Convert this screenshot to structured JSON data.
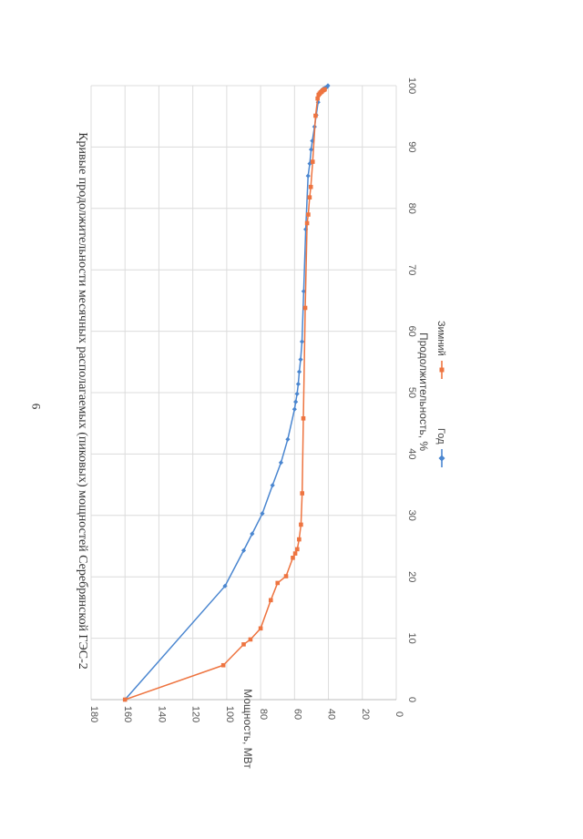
{
  "page": {
    "number": "6"
  },
  "colors": {
    "year": "#4a86d0",
    "winter": "#ee7440",
    "grid": "#dcdcdc",
    "axis": "#bdbdbd"
  },
  "chart_data": {
    "type": "line",
    "orientation": "rotated-90-clockwise",
    "title": "Кривые продолжительности месячных располагаемых (пиковых) мощностей Серебрянской ГЭС-2",
    "xlabel": "Продолжительность, %",
    "ylabel": "Мощность, МВт",
    "xlim": [
      0,
      100
    ],
    "ylim": [
      0,
      180
    ],
    "x_ticks": [
      0,
      10,
      20,
      30,
      40,
      50,
      60,
      70,
      80,
      90,
      100
    ],
    "y_ticks": [
      0,
      20,
      40,
      60,
      80,
      100,
      120,
      140,
      160,
      180
    ],
    "legend_position": "bottom",
    "series": [
      {
        "name": "Год",
        "color": "#4a86d0",
        "marker": "diamond",
        "x": [
          0,
          18.5,
          24.3,
          27.0,
          30.3,
          34.9,
          38.6,
          42.4,
          47.3,
          48.5,
          49.8,
          51.4,
          53.4,
          55.4,
          58.3,
          66.5,
          76.6,
          85.3,
          87.3,
          89.6,
          91.0,
          93.3,
          95.2,
          97.3,
          98.6,
          99.0,
          99.3,
          99.5,
          99.6,
          99.7,
          99.8,
          100
        ],
        "y": [
          160,
          101,
          90,
          85,
          79,
          73,
          68,
          64,
          60,
          59.3,
          58.5,
          57.8,
          57.2,
          56.4,
          55.6,
          54.6,
          53.4,
          52,
          51,
          50.2,
          49.5,
          48.2,
          47.2,
          46.1,
          45.5,
          44.6,
          43.8,
          42.9,
          42.1,
          41.4,
          40.8,
          40.3
        ]
      },
      {
        "name": "Зимний",
        "color": "#ee7440",
        "marker": "square",
        "x": [
          0,
          5.6,
          9.0,
          9.8,
          11.6,
          16.2,
          19.0,
          20.1,
          23.1,
          23.8,
          24.5,
          26.1,
          28.5,
          33.6,
          45.8,
          63.8,
          77.6,
          79.0,
          81.8,
          83.5,
          87.6,
          95.1,
          97.9,
          98.5,
          98.7,
          98.9,
          99.0,
          99.2,
          99.3,
          99.4
        ],
        "y": [
          160,
          102,
          90,
          86,
          80,
          74,
          70,
          65,
          61,
          59.6,
          58.4,
          57.3,
          56.2,
          55.5,
          54.8,
          53.7,
          52.6,
          51.9,
          51.1,
          50.4,
          49.3,
          47.6,
          46.4,
          45.8,
          45.2,
          44.6,
          44.0,
          43.4,
          42.8,
          42.2
        ]
      }
    ]
  }
}
